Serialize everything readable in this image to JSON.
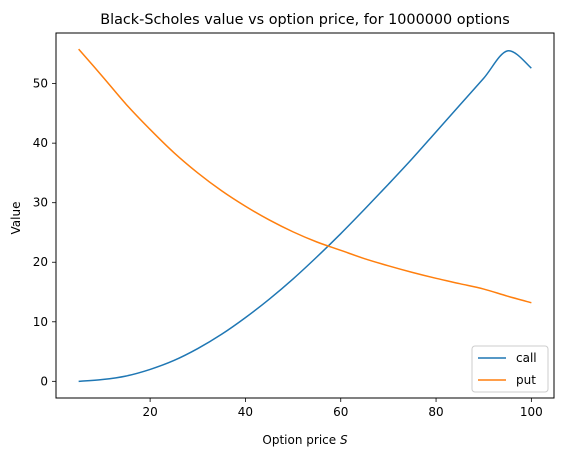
{
  "chart_data": {
    "type": "line",
    "title": "Black-Scholes value vs option price, for 1000000 options",
    "xlabel_prefix": "Option price ",
    "xlabel_var": "S",
    "ylabel": "Value",
    "xlim": [
      0.25,
      104.75
    ],
    "ylim": [
      -2.8,
      58.5
    ],
    "xticks": [
      20,
      40,
      60,
      80,
      100
    ],
    "yticks": [
      0,
      10,
      20,
      30,
      40,
      50
    ],
    "grid": false,
    "legend_position": "lower-right",
    "series": [
      {
        "name": "call",
        "color": "#1f77b4",
        "x": [
          5,
          10,
          15,
          20,
          25,
          30,
          35,
          40,
          45,
          50,
          55,
          60,
          65,
          70,
          75,
          80,
          85,
          90,
          95,
          100
        ],
        "y": [
          0.0,
          0.3,
          0.9,
          2.0,
          3.5,
          5.5,
          7.9,
          10.7,
          13.8,
          17.2,
          20.9,
          24.8,
          28.9,
          33.1,
          37.4,
          41.9,
          46.4,
          50.9,
          55.5,
          52.6
        ]
      },
      {
        "name": "put",
        "color": "#ff7f0e",
        "x": [
          5,
          10,
          15,
          20,
          25,
          30,
          35,
          40,
          45,
          50,
          55,
          60,
          65,
          70,
          75,
          80,
          85,
          90,
          95,
          100
        ],
        "y": [
          55.8,
          51.2,
          46.5,
          42.3,
          38.4,
          35.0,
          32.0,
          29.4,
          27.1,
          25.1,
          23.4,
          22.0,
          20.6,
          19.4,
          18.3,
          17.3,
          16.4,
          15.5,
          14.3,
          13.2
        ]
      }
    ]
  }
}
